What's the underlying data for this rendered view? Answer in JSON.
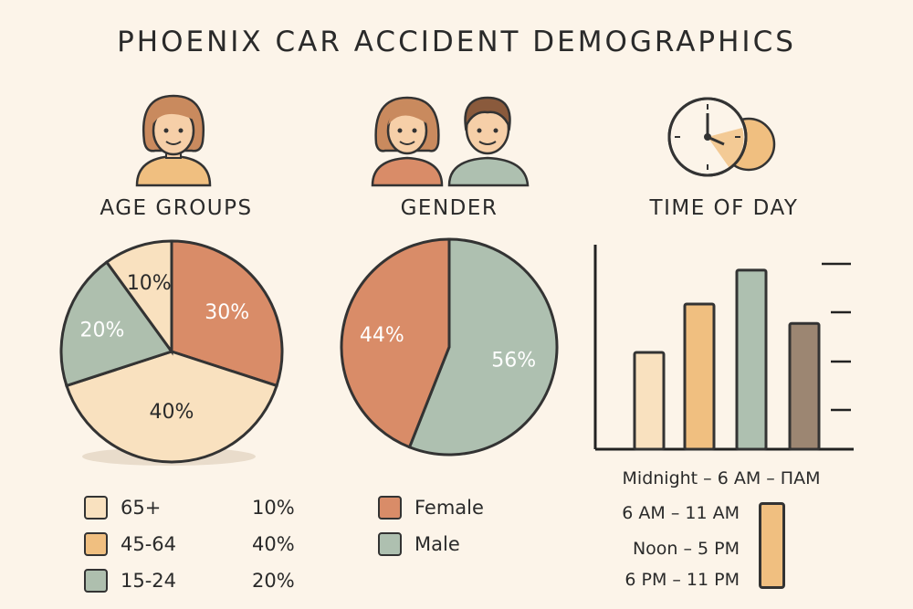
{
  "title": "PHOENIX CAR ACCIDENT DEMOGRAPHICS",
  "chart_data": [
    {
      "type": "pie",
      "title": "AGE GROUPS",
      "slices": [
        {
          "label": "45-64",
          "value": 30,
          "display": "30%",
          "color": "#d98c68"
        },
        {
          "label": "45-64",
          "value": 40,
          "display": "40%",
          "color": "#f9e1bf"
        },
        {
          "label": "15-24",
          "value": 20,
          "display": "20%",
          "color": "#aebfae"
        },
        {
          "label": "65+",
          "value": 10,
          "display": "10%",
          "color": "#f9e1bf"
        }
      ],
      "legend": [
        {
          "label": "65+",
          "value": "10%",
          "color": "#f9e1bf"
        },
        {
          "label": "45-64",
          "value": "40%",
          "color": "#f0bf80"
        },
        {
          "label": "15-24",
          "value": "20%",
          "color": "#aebfae"
        }
      ]
    },
    {
      "type": "pie",
      "title": "GENDER",
      "slices": [
        {
          "label": "Male",
          "value": 56,
          "display": "56%",
          "color": "#aec0b0"
        },
        {
          "label": "Female",
          "value": 44,
          "display": "44%",
          "color": "#d98c68"
        }
      ],
      "legend": [
        {
          "label": "Female",
          "color": "#d98c68"
        },
        {
          "label": "Male",
          "color": "#aec0b0"
        }
      ]
    },
    {
      "type": "bar",
      "title": "TIME OF DAY",
      "categories": [
        "Midnight - 6 AM",
        "6 AM - 11 AM",
        "Noon - 5 PM",
        "6 PM - 11 PM"
      ],
      "values": [
        2.0,
        3.0,
        3.7,
        2.6
      ],
      "ylim": [
        0,
        4
      ],
      "colors": [
        "#f9e1bf",
        "#f0bf80",
        "#aec0b0",
        "#9c8672"
      ],
      "legend_labels": [
        "Midnight – 6 AM – ΠAM",
        "6 AM – 11 AM",
        "Noon – 5 PM",
        "6 PM – 11 PM"
      ],
      "legend_swatch_color": "#f0bf80"
    }
  ]
}
